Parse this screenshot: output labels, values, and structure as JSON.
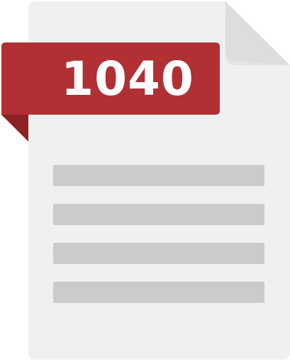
{
  "form_number": "1040",
  "colors": {
    "page": "#f0f0f0",
    "page_shadow": "#e2e2e2",
    "fold": "#dcdddd",
    "ribbon": "#b03033",
    "ribbon_tail": "#8e2124",
    "lines": "#cbcbcb",
    "label": "#ffffff"
  },
  "icon": "tax-form-1040-document-icon"
}
